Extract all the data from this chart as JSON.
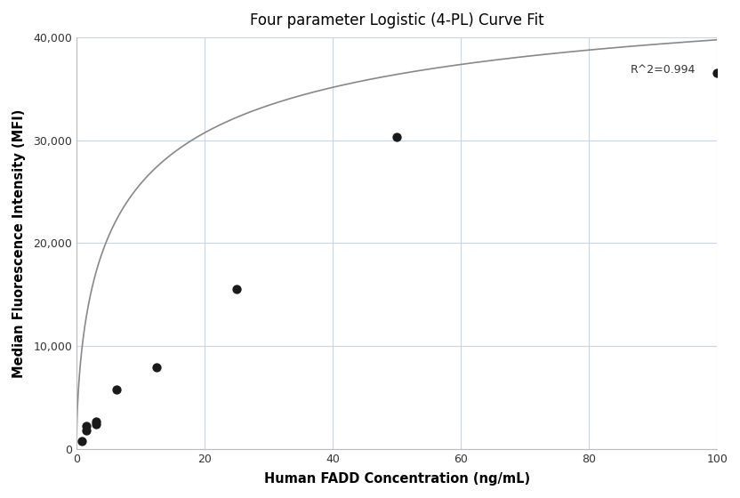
{
  "title": "Four parameter Logistic (4-PL) Curve Fit",
  "xlabel": "Human FADD Concentration (ng/mL)",
  "ylabel": "Median Fluorescence Intensity (MFI)",
  "r_squared": "R^2=0.994",
  "scatter_x": [
    0.781,
    1.563,
    1.563,
    3.125,
    3.125,
    6.25,
    12.5,
    25.0,
    50.0,
    100.0
  ],
  "scatter_y": [
    800,
    1800,
    2200,
    2400,
    2700,
    5800,
    7900,
    15500,
    30300,
    36500
  ],
  "xlim": [
    0,
    100
  ],
  "ylim": [
    0,
    40000
  ],
  "yticks": [
    0,
    10000,
    20000,
    30000,
    40000
  ],
  "xticks": [
    0,
    20,
    40,
    60,
    80,
    100
  ],
  "dot_color": "#1a1a1a",
  "dot_size": 55,
  "line_color": "#888888",
  "grid_color": "#c8d4e8",
  "background_color": "#ffffff",
  "4pl_A": 200,
  "4pl_B": 0.62,
  "4pl_C": 8.0,
  "4pl_D": 48000
}
